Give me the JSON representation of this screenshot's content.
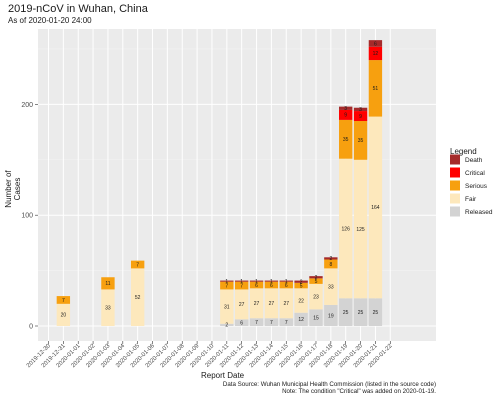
{
  "chart_data": {
    "type": "bar",
    "stacked": true,
    "title": "2019-nCoV in Wuhan, China",
    "subtitle": "As of 2020-01-20 24:00",
    "xlabel": "Report Date",
    "ylabel": "Number of Cases",
    "ylim": [
      0,
      260
    ],
    "yticks": [
      0,
      100,
      200
    ],
    "grid": true,
    "legend_title": "Legend",
    "legend_position": "right",
    "categories": [
      "2019-12-30",
      "2019-12-31",
      "2020-01-01",
      "2020-01-02",
      "2020-01-03",
      "2020-01-04",
      "2020-01-05",
      "2020-01-06",
      "2020-01-07",
      "2020-01-08",
      "2020-01-09",
      "2020-01-10",
      "2020-01-11",
      "2020-01-12",
      "2020-01-13",
      "2020-01-14",
      "2020-01-15",
      "2020-01-16",
      "2020-01-17",
      "2020-01-18",
      "2020-01-19",
      "2020-01-20",
      "2020-01-21",
      "2020-01-22"
    ],
    "series": [
      {
        "name": "Released",
        "color": "#d3d3d3",
        "values": [
          0,
          0,
          0,
          0,
          0,
          0,
          0,
          0,
          0,
          0,
          0,
          0,
          2,
          6,
          7,
          7,
          7,
          12,
          15,
          19,
          25,
          25,
          25,
          0
        ]
      },
      {
        "name": "Fair",
        "color": "#fde8bc",
        "values": [
          0,
          20,
          0,
          0,
          33,
          0,
          52,
          0,
          0,
          0,
          0,
          0,
          31,
          27,
          27,
          27,
          27,
          22,
          23,
          33,
          126,
          125,
          164,
          0
        ]
      },
      {
        "name": "Serious",
        "color": "#f7a00f",
        "values": [
          0,
          7,
          0,
          0,
          11,
          0,
          7,
          0,
          0,
          0,
          0,
          0,
          7,
          7,
          6,
          6,
          6,
          5,
          5,
          8,
          35,
          35,
          51,
          0
        ]
      },
      {
        "name": "Critical",
        "color": "#ff0000",
        "values": [
          0,
          0,
          0,
          0,
          0,
          0,
          0,
          0,
          0,
          0,
          0,
          0,
          0,
          0,
          0,
          0,
          0,
          0,
          0,
          0,
          9,
          9,
          12,
          0
        ]
      },
      {
        "name": "Death",
        "color": "#a52a2a",
        "values": [
          0,
          0,
          0,
          0,
          0,
          0,
          0,
          0,
          0,
          0,
          0,
          0,
          1,
          1,
          1,
          1,
          1,
          2,
          2,
          2,
          3,
          3,
          6,
          0
        ]
      }
    ],
    "legend_order": [
      "Death",
      "Critical",
      "Serious",
      "Fair",
      "Released"
    ]
  },
  "caption": {
    "line1": "Data Source: Wuhan Municipal Health Commission (listed in the source code)",
    "line2": "Note: The condition \"Critical\" was added on 2020-01-19."
  }
}
